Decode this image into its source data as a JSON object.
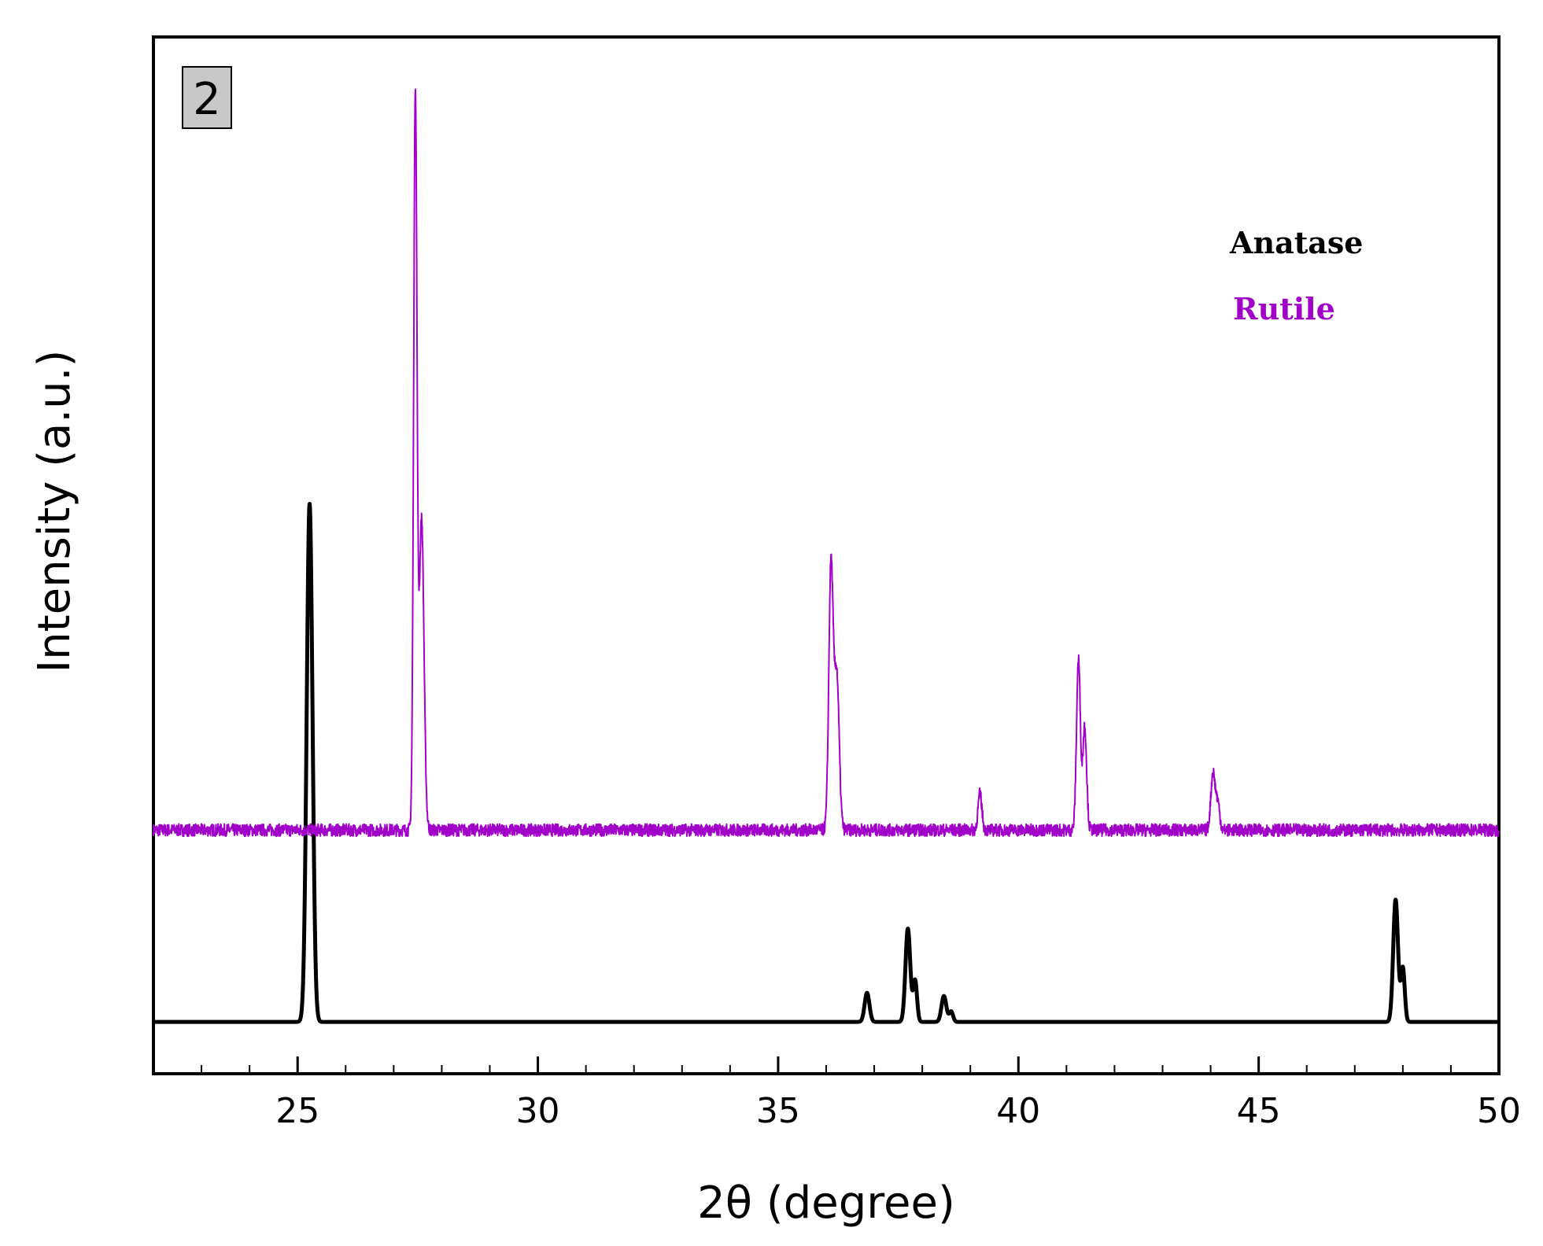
{
  "chart_data": {
    "type": "line",
    "xlabel": "2θ (degree)",
    "ylabel": "Intensity (a.u.)",
    "xlim": [
      22,
      50
    ],
    "ylim": [
      0,
      1
    ],
    "x_ticks": [
      25,
      30,
      35,
      40,
      45,
      50
    ],
    "y_ticks": [],
    "grid": false,
    "legend_position": "top-right",
    "panel_label": "2",
    "series": [
      {
        "name": "Anatase",
        "color": "#000000",
        "baseline": 0.05,
        "peaks": [
          {
            "x": 25.25,
            "height": 0.5,
            "width": 0.06
          },
          {
            "x": 36.85,
            "height": 0.028,
            "width": 0.05
          },
          {
            "x": 37.7,
            "height": 0.09,
            "width": 0.05
          },
          {
            "x": 37.85,
            "height": 0.04,
            "width": 0.04
          },
          {
            "x": 38.45,
            "height": 0.025,
            "width": 0.05
          },
          {
            "x": 38.6,
            "height": 0.01,
            "width": 0.04
          },
          {
            "x": 47.85,
            "height": 0.118,
            "width": 0.05
          },
          {
            "x": 48.0,
            "height": 0.052,
            "width": 0.04
          }
        ]
      },
      {
        "name": "Rutile",
        "color": "#a000c8",
        "baseline": 0.235,
        "noise": 0.006,
        "peaks": [
          {
            "x": 27.45,
            "height": 0.71,
            "width": 0.035
          },
          {
            "x": 27.58,
            "height": 0.3,
            "width": 0.05
          },
          {
            "x": 36.1,
            "height": 0.255,
            "width": 0.045
          },
          {
            "x": 36.22,
            "height": 0.15,
            "width": 0.05
          },
          {
            "x": 39.2,
            "height": 0.035,
            "width": 0.04
          },
          {
            "x": 41.25,
            "height": 0.165,
            "width": 0.04
          },
          {
            "x": 41.38,
            "height": 0.1,
            "width": 0.04
          },
          {
            "x": 44.05,
            "height": 0.055,
            "width": 0.045
          },
          {
            "x": 44.15,
            "height": 0.025,
            "width": 0.04
          }
        ]
      }
    ]
  }
}
